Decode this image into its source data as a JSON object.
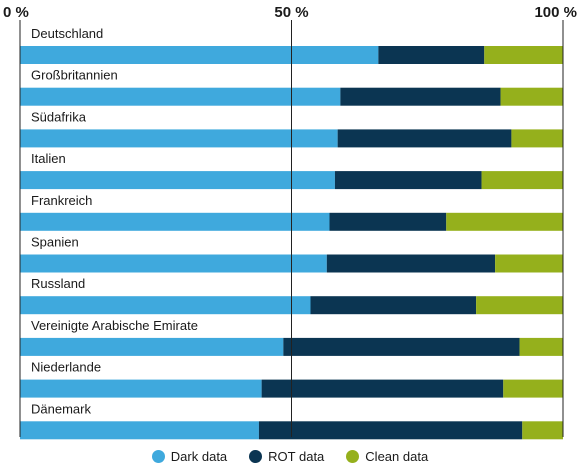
{
  "chart_data": {
    "type": "bar",
    "orientation": "horizontal",
    "stacked": true,
    "percent_stacked": true,
    "x_ticks": [
      "0 %",
      "50 %",
      "100 %"
    ],
    "xlim": [
      0,
      100
    ],
    "categories": [
      "Deutschland",
      "Großbritannien",
      "Südafrika",
      "Italien",
      "Frankreich",
      "Spanien",
      "Russland",
      "Vereinigte Arabische Emirate",
      "Niederlande",
      "Dänemark"
    ],
    "series": [
      {
        "name": "Dark data",
        "color": "#3fa9dd",
        "values": [
          66,
          59,
          58.5,
          58,
          57,
          56.5,
          53.5,
          48.5,
          44.5,
          44
        ]
      },
      {
        "name": "ROT data",
        "color": "#0b3552",
        "values": [
          19.5,
          29.5,
          32,
          27,
          21.5,
          31,
          30.5,
          43.5,
          44.5,
          48.5
        ]
      },
      {
        "name": "Clean data",
        "color": "#95b01c",
        "values": [
          14.5,
          11.5,
          9.5,
          15,
          21.5,
          12.5,
          16,
          8,
          11,
          7.5
        ]
      }
    ],
    "legend_position": "bottom",
    "grid": false
  }
}
